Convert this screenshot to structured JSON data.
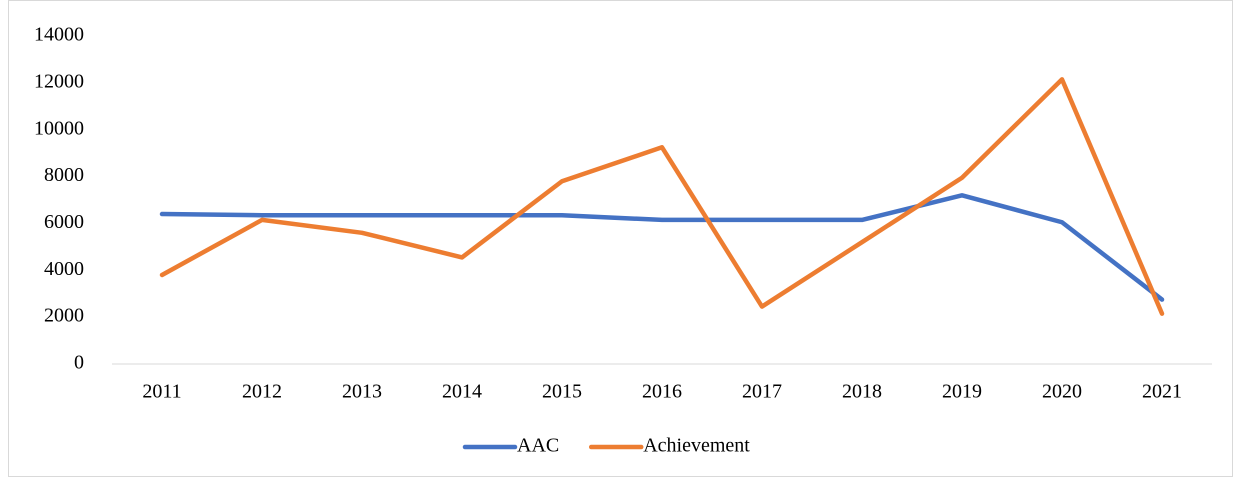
{
  "chart_data": {
    "type": "line",
    "categories": [
      "2011",
      "2012",
      "2013",
      "2014",
      "2015",
      "2016",
      "2017",
      "2018",
      "2019",
      "2020",
      "2021"
    ],
    "series": [
      {
        "name": "AAC",
        "color": "#4472c4",
        "values": [
          6400,
          6350,
          6350,
          6350,
          6350,
          6150,
          6150,
          6150,
          7200,
          6050,
          2750
        ]
      },
      {
        "name": "Achievement",
        "color": "#ed7d31",
        "values": [
          3800,
          6150,
          5600,
          4550,
          7800,
          9250,
          2450,
          5200,
          7950,
          12150,
          2150
        ]
      }
    ],
    "ylim": [
      0,
      14000
    ],
    "yticks": [
      0,
      2000,
      4000,
      6000,
      8000,
      10000,
      12000,
      14000
    ],
    "grid": false,
    "legend": "bottom"
  }
}
